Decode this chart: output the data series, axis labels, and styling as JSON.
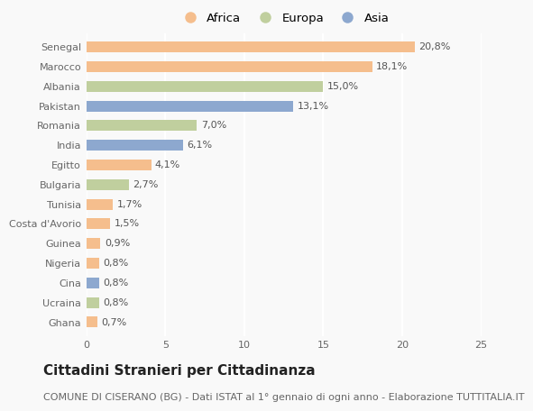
{
  "countries": [
    "Senegal",
    "Marocco",
    "Albania",
    "Pakistan",
    "Romania",
    "India",
    "Egitto",
    "Bulgaria",
    "Tunisia",
    "Costa d'Avorio",
    "Guinea",
    "Nigeria",
    "Cina",
    "Ucraina",
    "Ghana"
  ],
  "values": [
    20.8,
    18.1,
    15.0,
    13.1,
    7.0,
    6.1,
    4.1,
    2.7,
    1.7,
    1.5,
    0.9,
    0.8,
    0.8,
    0.8,
    0.7
  ],
  "continents": [
    "Africa",
    "Africa",
    "Europa",
    "Asia",
    "Europa",
    "Asia",
    "Africa",
    "Europa",
    "Africa",
    "Africa",
    "Africa",
    "Africa",
    "Asia",
    "Europa",
    "Africa"
  ],
  "colors": {
    "Africa": "#F5BE8D",
    "Europa": "#C0CF9E",
    "Asia": "#8DA8CF"
  },
  "legend_order": [
    "Africa",
    "Europa",
    "Asia"
  ],
  "xlim": [
    0,
    25
  ],
  "xticks": [
    0,
    5,
    10,
    15,
    20,
    25
  ],
  "title": "Cittadini Stranieri per Cittadinanza",
  "subtitle": "COMUNE DI CISERANO (BG) - Dati ISTAT al 1° gennaio di ogni anno - Elaborazione TUTTITALIA.IT",
  "bg_color": "#f9f9f9",
  "bar_height": 0.55,
  "title_fontsize": 11,
  "subtitle_fontsize": 8,
  "label_fontsize": 8,
  "tick_fontsize": 8,
  "grid_color": "#ffffff",
  "bar_label_color": "#555555"
}
